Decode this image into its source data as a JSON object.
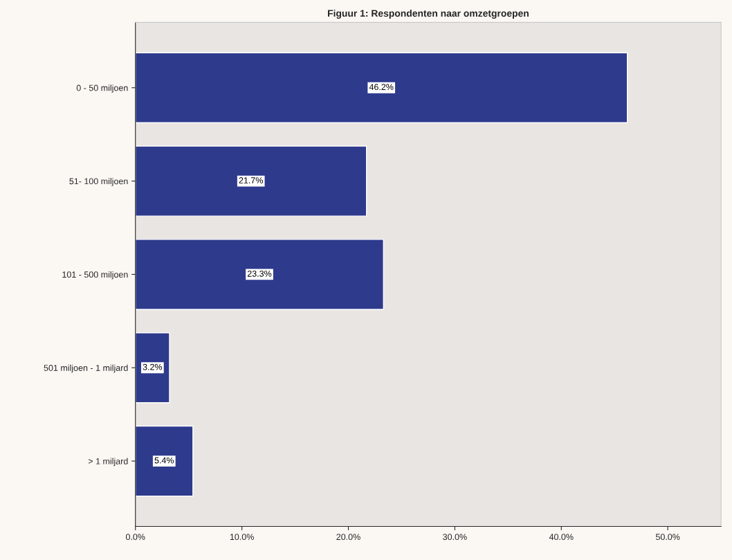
{
  "chart_data": {
    "type": "bar",
    "orientation": "horizontal",
    "title": "Figuur 1: Respondenten naar omzetgroepen",
    "categories": [
      "0 - 50 miljoen",
      "51- 100 miljoen",
      "101 - 500 miljoen",
      "501 miljoen - 1 miljard",
      "> 1 miljard"
    ],
    "values": [
      46.2,
      21.7,
      23.3,
      3.2,
      5.4
    ],
    "value_labels": [
      "46.2%",
      "21.7%",
      "23.3%",
      "3.2%",
      "5.4%"
    ],
    "color": "#2e3a8c",
    "xlim": [
      0,
      55
    ],
    "xticks": [
      {
        "value": 0,
        "label": "0.0%"
      },
      {
        "value": 10,
        "label": "10.0%"
      },
      {
        "value": 20,
        "label": "20.0%"
      },
      {
        "value": 30,
        "label": "30.0%"
      },
      {
        "value": 40,
        "label": "40.0%"
      },
      {
        "value": 50,
        "label": "50.0%"
      }
    ],
    "grid": false
  }
}
